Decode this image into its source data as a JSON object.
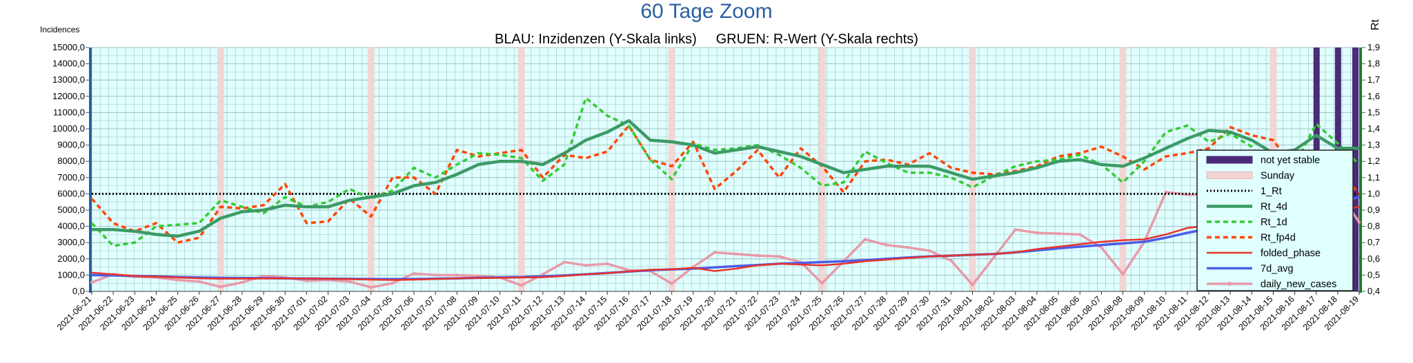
{
  "chart_data": {
    "type": "line",
    "title": "60 Tage Zoom",
    "subtitle": "BLAU: Inzidenzen (Y-Skala links)     GRUEN: R-Wert (Y-Skala rechts)",
    "ylabel": "Incidences",
    "y2label": "Rt",
    "ylim": [
      0,
      15000
    ],
    "y2lim": [
      0.4,
      1.9
    ],
    "grid": true,
    "legend_position": "right",
    "categories": [
      "2021-06-21",
      "2021-06-22",
      "2021-06-23",
      "2021-06-24",
      "2021-06-25",
      "2021-06-26",
      "2021-06-27",
      "2021-06-28",
      "2021-06-29",
      "2021-06-30",
      "2021-07-01",
      "2021-07-02",
      "2021-07-03",
      "2021-07-04",
      "2021-07-05",
      "2021-07-06",
      "2021-07-07",
      "2021-07-08",
      "2021-07-09",
      "2021-07-10",
      "2021-07-11",
      "2021-07-12",
      "2021-07-13",
      "2021-07-14",
      "2021-07-15",
      "2021-07-16",
      "2021-07-17",
      "2021-07-18",
      "2021-07-19",
      "2021-07-20",
      "2021-07-21",
      "2021-07-22",
      "2021-07-23",
      "2021-07-24",
      "2021-07-25",
      "2021-07-26",
      "2021-07-27",
      "2021-07-28",
      "2021-07-29",
      "2021-07-30",
      "2021-07-31",
      "2021-08-01",
      "2021-08-02",
      "2021-08-03",
      "2021-08-04",
      "2021-08-05",
      "2021-08-06",
      "2021-08-07",
      "2021-08-08",
      "2021-08-09",
      "2021-08-10",
      "2021-08-11",
      "2021-08-12",
      "2021-08-13",
      "2021-08-14",
      "2021-08-15",
      "2021-08-16",
      "2021-08-17",
      "2021-08-18",
      "2021-08-19"
    ],
    "y_ticks": [
      "0,0",
      "1000,0",
      "2000,0",
      "3000,0",
      "4000,0",
      "5000,0",
      "6000,0",
      "7000,0",
      "8000,0",
      "9000,0",
      "10000,0",
      "11000,0",
      "12000,0",
      "13000,0",
      "14000,0",
      "15000,0"
    ],
    "y2_ticks": [
      "0,4",
      "0,5",
      "0,6",
      "0,7",
      "0,8",
      "0,9",
      "1,0",
      "1,1",
      "1,2",
      "1,3",
      "1,4",
      "1,5",
      "1,6",
      "1,7",
      "1,8",
      "1,9"
    ],
    "sunday_indices": [
      6,
      13,
      20,
      27,
      34,
      41,
      48,
      55
    ],
    "not_yet_stable_indices": [
      57,
      58,
      59
    ],
    "series": [
      {
        "name": "not yet stable",
        "kind": "bar",
        "color": "#4b2a7a"
      },
      {
        "name": "Sunday",
        "kind": "bar",
        "color": "#f2d4d4"
      },
      {
        "name": "1_Rt",
        "axis": "right",
        "color": "#000000",
        "style": "dotted",
        "values": [
          1.0,
          1.0,
          1.0,
          1.0,
          1.0,
          1.0,
          1.0,
          1.0,
          1.0,
          1.0,
          1.0,
          1.0,
          1.0,
          1.0,
          1.0,
          1.0,
          1.0,
          1.0,
          1.0,
          1.0,
          1.0,
          1.0,
          1.0,
          1.0,
          1.0,
          1.0,
          1.0,
          1.0,
          1.0,
          1.0,
          1.0,
          1.0,
          1.0,
          1.0,
          1.0,
          1.0,
          1.0,
          1.0,
          1.0,
          1.0,
          1.0,
          1.0,
          1.0,
          1.0,
          1.0,
          1.0,
          1.0,
          1.0,
          1.0,
          1.0,
          1.0,
          1.0,
          1.0,
          1.0,
          1.0,
          1.0,
          1.0,
          1.0,
          1.0,
          1.0
        ]
      },
      {
        "name": "Rt_4d",
        "axis": "right",
        "color": "#3c9a66",
        "style": "thick",
        "values": [
          0.78,
          0.78,
          0.77,
          0.75,
          0.74,
          0.77,
          0.85,
          0.89,
          0.9,
          0.93,
          0.92,
          0.92,
          0.96,
          0.98,
          1.0,
          1.05,
          1.07,
          1.12,
          1.18,
          1.2,
          1.2,
          1.18,
          1.25,
          1.33,
          1.38,
          1.45,
          1.33,
          1.32,
          1.3,
          1.25,
          1.27,
          1.29,
          1.26,
          1.23,
          1.18,
          1.13,
          1.15,
          1.17,
          1.17,
          1.17,
          1.13,
          1.09,
          1.11,
          1.13,
          1.16,
          1.2,
          1.21,
          1.18,
          1.17,
          1.22,
          1.28,
          1.34,
          1.39,
          1.38,
          1.33,
          1.25,
          1.27,
          1.36,
          1.28,
          1.28
        ]
      },
      {
        "name": "Rt_1d",
        "axis": "right",
        "color": "#33cc33",
        "style": "dashed",
        "values": [
          0.82,
          0.68,
          0.7,
          0.8,
          0.81,
          0.82,
          0.96,
          0.92,
          0.88,
          0.98,
          0.92,
          0.95,
          1.03,
          0.97,
          1.02,
          1.16,
          1.1,
          1.18,
          1.25,
          1.24,
          1.22,
          1.08,
          1.18,
          1.59,
          1.48,
          1.42,
          1.21,
          1.09,
          1.31,
          1.27,
          1.28,
          1.3,
          1.24,
          1.16,
          1.05,
          1.07,
          1.26,
          1.19,
          1.13,
          1.13,
          1.1,
          1.04,
          1.11,
          1.17,
          1.2,
          1.21,
          1.24,
          1.18,
          1.07,
          1.2,
          1.38,
          1.42,
          1.32,
          1.37,
          1.29,
          1.13,
          1.18,
          1.43,
          1.31,
          1.18
        ]
      },
      {
        "name": "Rt_fp4d",
        "axis": "right",
        "color": "#ff4500",
        "style": "dashed",
        "values": [
          0.97,
          0.82,
          0.77,
          0.82,
          0.7,
          0.73,
          0.92,
          0.91,
          0.93,
          1.06,
          0.82,
          0.83,
          0.97,
          0.86,
          1.1,
          1.1,
          1.0,
          1.27,
          1.23,
          1.25,
          1.27,
          1.1,
          1.24,
          1.22,
          1.26,
          1.42,
          1.21,
          1.17,
          1.32,
          1.03,
          1.14,
          1.27,
          1.1,
          1.28,
          1.17,
          1.01,
          1.2,
          1.21,
          1.18,
          1.25,
          1.16,
          1.13,
          1.12,
          1.14,
          1.17,
          1.23,
          1.25,
          1.29,
          1.23,
          1.15,
          1.23,
          1.25,
          1.28,
          1.41,
          1.36,
          1.33,
          1.15,
          1.18,
          1.15,
          1.0
        ]
      },
      {
        "name": "folded_phase",
        "axis": "left",
        "color": "#e8332a",
        "style": "solid",
        "values": [
          1150,
          1050,
          950,
          900,
          850,
          800,
          780,
          780,
          790,
          800,
          790,
          770,
          750,
          720,
          700,
          720,
          760,
          800,
          820,
          830,
          850,
          870,
          950,
          1050,
          1120,
          1230,
          1330,
          1350,
          1450,
          1250,
          1400,
          1600,
          1700,
          1650,
          1600,
          1700,
          1850,
          1950,
          2050,
          2150,
          2200,
          2250,
          2300,
          2400,
          2600,
          2750,
          2900,
          3050,
          3150,
          3200,
          3500,
          3900,
          4050,
          4400,
          4600,
          4800,
          5050,
          4750,
          5000,
          5200
        ]
      },
      {
        "name": "7d_avg",
        "axis": "left",
        "color": "#4b5ee6",
        "style": "solid",
        "values": [
          1000,
          980,
          950,
          920,
          880,
          850,
          830,
          820,
          810,
          800,
          790,
          780,
          770,
          760,
          750,
          760,
          780,
          800,
          830,
          860,
          880,
          920,
          980,
          1050,
          1130,
          1220,
          1300,
          1350,
          1400,
          1480,
          1550,
          1620,
          1700,
          1750,
          1800,
          1850,
          1920,
          2000,
          2080,
          2150,
          2200,
          2250,
          2300,
          2400,
          2520,
          2650,
          2750,
          2850,
          2950,
          3050,
          3300,
          3600,
          3850,
          4100,
          4300,
          4500,
          4700,
          5100,
          5450,
          5800
        ]
      },
      {
        "name": "daily_new_cases",
        "axis": "left",
        "color": "#e89aa8",
        "style": "solid",
        "values": [
          550,
          1050,
          900,
          850,
          700,
          600,
          280,
          550,
          950,
          850,
          650,
          700,
          600,
          250,
          500,
          1100,
          1000,
          1000,
          950,
          850,
          370,
          1050,
          1800,
          1600,
          1700,
          1300,
          1250,
          480,
          1500,
          2400,
          2300,
          2200,
          2150,
          1800,
          500,
          1850,
          3200,
          2850,
          2700,
          2500,
          1900,
          400,
          2100,
          3800,
          3600,
          3550,
          3500,
          2700,
          1050,
          3050,
          6100,
          5950,
          5950,
          6100,
          4550,
          1350,
          3900,
          5600,
          6200,
          4250
        ]
      }
    ]
  }
}
